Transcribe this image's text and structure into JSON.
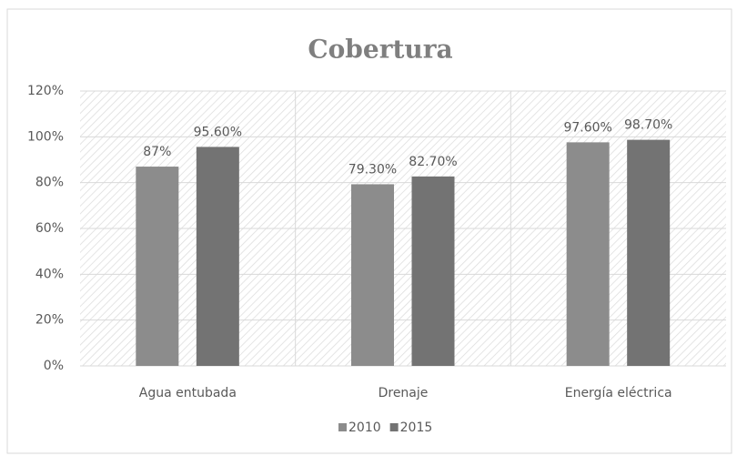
{
  "chart_data": {
    "type": "bar",
    "title": "Cobertura",
    "categories": [
      "Agua entubada",
      "Drenaje",
      "Energía eléctrica"
    ],
    "series": [
      {
        "name": "2010",
        "color": "#8c8c8c",
        "values": [
          87,
          79.3,
          97.6
        ],
        "value_labels": [
          "87%",
          "79.30%",
          "97.60%"
        ]
      },
      {
        "name": "2015",
        "color": "#737373",
        "values": [
          95.6,
          82.7,
          98.7
        ],
        "value_labels": [
          "95.60%",
          "82.70%",
          "98.70%"
        ]
      }
    ],
    "ylim": [
      0,
      120
    ],
    "yticks": [
      {
        "value": 0,
        "label": "0%"
      },
      {
        "value": 20,
        "label": "20%"
      },
      {
        "value": 40,
        "label": "40%"
      },
      {
        "value": 60,
        "label": "60%"
      },
      {
        "value": 80,
        "label": "80%"
      },
      {
        "value": 100,
        "label": "100%"
      },
      {
        "value": 120,
        "label": "120%"
      }
    ],
    "grid": true,
    "legend": "bottom"
  }
}
